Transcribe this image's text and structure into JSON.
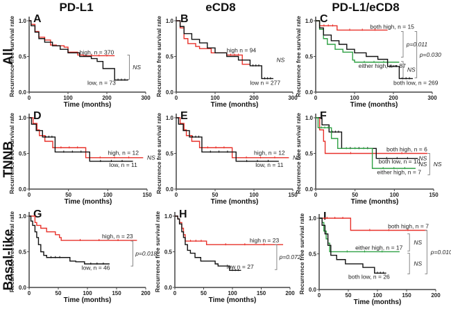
{
  "figure": {
    "column_titles": [
      "PD-L1",
      "eCD8",
      "PD-L1/eCD8"
    ],
    "row_labels": [
      "All",
      "TNNB",
      "Basal-like"
    ],
    "colors": {
      "high": "#e8312a",
      "low": "#111111",
      "either": "#2ea043",
      "bracket": "#888888"
    }
  },
  "chart_data": [
    {
      "id": "A",
      "type": "line",
      "row": "All",
      "column": "PD-L1",
      "xlabel": "Time (months)",
      "ylabel": "Recurrence free survival rate",
      "xlim": [
        0,
        300
      ],
      "ylim": [
        0,
        1.0
      ],
      "xticks": [
        0,
        100,
        200,
        300
      ],
      "yticks": [
        "0.0",
        "0.5",
        "1.0"
      ],
      "series": [
        {
          "name": "high",
          "label": "high, n = 370",
          "color": "#e8312a",
          "x": [
            0,
            5,
            15,
            25,
            40,
            55,
            70,
            90,
            100,
            125,
            140,
            220
          ],
          "y": [
            1.0,
            0.95,
            0.85,
            0.77,
            0.73,
            0.66,
            0.65,
            0.63,
            0.56,
            0.52,
            0.51,
            0.51
          ]
        },
        {
          "name": "low",
          "label": "low, n = 73",
          "color": "#111111",
          "x": [
            0,
            5,
            15,
            25,
            40,
            60,
            80,
            100,
            130,
            160,
            175,
            190,
            200,
            220,
            220,
            255
          ],
          "y": [
            1.0,
            0.93,
            0.84,
            0.75,
            0.7,
            0.65,
            0.6,
            0.55,
            0.5,
            0.47,
            0.43,
            0.33,
            0.33,
            0.33,
            0.17,
            0.17
          ]
        }
      ],
      "annotations": [
        {
          "text": "NS",
          "between": [
            "high",
            "low"
          ]
        }
      ]
    },
    {
      "id": "B",
      "type": "line",
      "row": "All",
      "column": "eCD8",
      "xlabel": "Time (months)",
      "ylabel": "Recurrence free survival rate",
      "xlim": [
        0,
        300
      ],
      "ylim": [
        0,
        1.0
      ],
      "xticks": [
        0,
        100,
        200,
        300
      ],
      "yticks": [
        "0.0",
        "0.5",
        "1.0"
      ],
      "series": [
        {
          "name": "high",
          "label": "high n = 94",
          "color": "#e8312a",
          "x": [
            0,
            10,
            20,
            30,
            50,
            60,
            90,
            130,
            170,
            170,
            190
          ],
          "y": [
            1.0,
            0.9,
            0.75,
            0.68,
            0.64,
            0.61,
            0.55,
            0.52,
            0.52,
            0.39,
            0.39
          ]
        },
        {
          "name": "low",
          "label": "low n = 277",
          "color": "#111111",
          "x": [
            0,
            10,
            20,
            40,
            60,
            80,
            100,
            130,
            160,
            190,
            220,
            220,
            250
          ],
          "y": [
            1.0,
            0.92,
            0.82,
            0.74,
            0.69,
            0.62,
            0.55,
            0.5,
            0.45,
            0.37,
            0.37,
            0.19,
            0.19
          ]
        }
      ],
      "annotations": [
        {
          "text": "NS",
          "between": [
            "high",
            "low"
          ]
        }
      ]
    },
    {
      "id": "C",
      "type": "line",
      "row": "All",
      "column": "PD-L1/eCD8",
      "xlabel": "Time (months)",
      "ylabel": "Recurrence free survival rate",
      "xlim": [
        0,
        300
      ],
      "ylim": [
        0,
        1.0
      ],
      "xticks": [
        0,
        100,
        200,
        300
      ],
      "yticks": [
        "0.0",
        "0.5",
        "1.0"
      ],
      "series": [
        {
          "name": "both high",
          "label": "both high, n = 15",
          "color": "#e8312a",
          "x": [
            0,
            10,
            10,
            55,
            55,
            185
          ],
          "y": [
            1.0,
            1.0,
            0.93,
            0.93,
            0.87,
            0.87
          ]
        },
        {
          "name": "either high",
          "label": "either high, n = 87",
          "color": "#2ea043",
          "x": [
            0,
            10,
            20,
            30,
            50,
            70,
            95,
            100,
            200,
            215
          ],
          "y": [
            1.0,
            0.88,
            0.75,
            0.67,
            0.6,
            0.56,
            0.45,
            0.42,
            0.42,
            0.42
          ]
        },
        {
          "name": "both low",
          "label": "both low, n = 269",
          "color": "#111111",
          "x": [
            0,
            10,
            20,
            40,
            60,
            80,
            100,
            130,
            160,
            185,
            185,
            215,
            215,
            250
          ],
          "y": [
            1.0,
            0.9,
            0.8,
            0.72,
            0.67,
            0.6,
            0.55,
            0.5,
            0.46,
            0.42,
            0.36,
            0.36,
            0.19,
            0.19
          ]
        }
      ],
      "annotations": [
        {
          "text": "p=0.011",
          "between": [
            "both high",
            "either high"
          ]
        },
        {
          "text": "NS",
          "between": [
            "either high",
            "both low"
          ]
        },
        {
          "text": "p=0.030",
          "between": [
            "both high",
            "both low"
          ]
        }
      ]
    },
    {
      "id": "D",
      "type": "line",
      "row": "TNNB",
      "column": "PD-L1",
      "xlabel": "Time (months)",
      "ylabel": "Recurrence free survival rate",
      "xlim": [
        0,
        150
      ],
      "ylim": [
        0,
        1.0
      ],
      "xticks": [
        0,
        50,
        100,
        150
      ],
      "yticks": [
        "0.0",
        "0.5",
        "1.0"
      ],
      "series": [
        {
          "name": "high",
          "label": "high, n = 12",
          "color": "#e8312a",
          "x": [
            0,
            5,
            5,
            10,
            10,
            13,
            13,
            20,
            20,
            30,
            30,
            72,
            72,
            145
          ],
          "y": [
            1.0,
            1.0,
            0.92,
            0.92,
            0.83,
            0.83,
            0.75,
            0.75,
            0.67,
            0.67,
            0.58,
            0.58,
            0.44,
            0.44
          ]
        },
        {
          "name": "low",
          "label": "low, n = 11",
          "color": "#111111",
          "x": [
            0,
            3,
            3,
            9,
            9,
            17,
            17,
            33,
            33,
            77,
            77,
            132
          ],
          "y": [
            1.0,
            1.0,
            0.91,
            0.91,
            0.82,
            0.82,
            0.73,
            0.73,
            0.52,
            0.52,
            0.39,
            0.39
          ]
        }
      ],
      "annotations": [
        {
          "text": "NS",
          "between": [
            "high",
            "low"
          ]
        }
      ]
    },
    {
      "id": "E",
      "type": "line",
      "row": "TNNB",
      "column": "eCD8",
      "xlabel": "Time (months)",
      "ylabel": "Recurrence free survival rate",
      "xlim": [
        0,
        150
      ],
      "ylim": [
        0,
        1.0
      ],
      "xticks": [
        0,
        50,
        100,
        150
      ],
      "yticks": [
        "0.0",
        "0.5",
        "1.0"
      ],
      "series": [
        {
          "name": "high",
          "label": "high, n = 12",
          "color": "#e8312a",
          "x": [
            0,
            5,
            5,
            10,
            10,
            13,
            13,
            20,
            20,
            30,
            30,
            72,
            72,
            145
          ],
          "y": [
            1.0,
            1.0,
            0.92,
            0.92,
            0.83,
            0.83,
            0.75,
            0.75,
            0.67,
            0.67,
            0.58,
            0.58,
            0.44,
            0.44
          ]
        },
        {
          "name": "low",
          "label": "low, n = 11",
          "color": "#111111",
          "x": [
            0,
            3,
            3,
            9,
            9,
            17,
            17,
            33,
            33,
            77,
            77,
            132
          ],
          "y": [
            1.0,
            1.0,
            0.91,
            0.91,
            0.82,
            0.82,
            0.73,
            0.73,
            0.52,
            0.52,
            0.39,
            0.39
          ]
        }
      ],
      "annotations": [
        {
          "text": "NS",
          "between": [
            "high",
            "low"
          ]
        }
      ]
    },
    {
      "id": "F",
      "type": "line",
      "row": "TNNB",
      "column": "PD-L1/eCD8",
      "xlabel": "Time (months)",
      "ylabel": "Recurrence free survival rate",
      "xlim": [
        0,
        150
      ],
      "ylim": [
        0,
        1.0
      ],
      "xticks": [
        0,
        50,
        100,
        150
      ],
      "yticks": [
        "0.0",
        "0.5",
        "1.0"
      ],
      "series": [
        {
          "name": "both high",
          "label": "both high, n = 6",
          "color": "#e8312a",
          "x": [
            0,
            5,
            5,
            10,
            10,
            12,
            12,
            142
          ],
          "y": [
            1.0,
            1.0,
            0.83,
            0.83,
            0.67,
            0.67,
            0.5,
            0.5
          ]
        },
        {
          "name": "both low",
          "label": "both low, n = 10",
          "color": "#111111",
          "x": [
            0,
            8,
            8,
            17,
            17,
            33,
            33,
            77,
            77,
            130
          ],
          "y": [
            1.0,
            1.0,
            0.9,
            0.9,
            0.8,
            0.8,
            0.57,
            0.57,
            0.43,
            0.43
          ]
        },
        {
          "name": "either high",
          "label": "either high, n = 7",
          "color": "#2ea043",
          "x": [
            0,
            3,
            3,
            20,
            20,
            28,
            28,
            72,
            72,
            127
          ],
          "y": [
            1.0,
            1.0,
            0.86,
            0.86,
            0.71,
            0.71,
            0.57,
            0.57,
            0.29,
            0.29
          ]
        }
      ],
      "annotations": [
        {
          "text": "NS",
          "between": [
            "both high",
            "both low"
          ]
        },
        {
          "text": "NS",
          "between": [
            "both low",
            "either high"
          ]
        },
        {
          "text": "NS",
          "between": [
            "both high",
            "either high"
          ]
        }
      ]
    },
    {
      "id": "G",
      "type": "line",
      "row": "Basal-like",
      "column": "PD-L1",
      "xlabel": "Time (months)",
      "ylabel": "Recurrence free survival rate",
      "xlim": [
        0,
        200
      ],
      "ylim": [
        0,
        1.0
      ],
      "xticks": [
        0,
        50,
        100,
        150,
        200
      ],
      "yticks": [
        "0.0",
        "0.5",
        "1.0"
      ],
      "series": [
        {
          "name": "high",
          "label": "high, n = 23",
          "color": "#e8312a",
          "x": [
            0,
            10,
            10,
            13,
            13,
            20,
            20,
            30,
            30,
            45,
            45,
            52,
            52,
            55,
            55,
            185
          ],
          "y": [
            1.0,
            1.0,
            0.91,
            0.91,
            0.87,
            0.87,
            0.83,
            0.83,
            0.78,
            0.78,
            0.74,
            0.74,
            0.7,
            0.7,
            0.66,
            0.66
          ]
        },
        {
          "name": "low",
          "label": "low, n = 46",
          "color": "#111111",
          "x": [
            0,
            3,
            6,
            10,
            13,
            16,
            20,
            25,
            30,
            60,
            70,
            80,
            95,
            138
          ],
          "y": [
            1.0,
            0.93,
            0.87,
            0.78,
            0.7,
            0.6,
            0.5,
            0.45,
            0.42,
            0.42,
            0.37,
            0.36,
            0.33,
            0.33
          ]
        }
      ],
      "annotations": [
        {
          "text": "p=0.018",
          "between": [
            "high",
            "low"
          ]
        }
      ]
    },
    {
      "id": "H",
      "type": "line",
      "row": "Basal-like",
      "column": "eCD8",
      "xlabel": "Time (months)",
      "ylabel": "Recurrence free survival rate",
      "xlim": [
        0,
        200
      ],
      "ylim": [
        0,
        1.0
      ],
      "xticks": [
        0,
        50,
        100,
        150,
        200
      ],
      "yticks": [
        "0.0",
        "0.5",
        "1.0"
      ],
      "series": [
        {
          "name": "high",
          "label": "high n = 23",
          "color": "#e8312a",
          "x": [
            0,
            5,
            8,
            12,
            15,
            18,
            18,
            55,
            55,
            188
          ],
          "y": [
            1.0,
            0.96,
            0.91,
            0.83,
            0.74,
            0.7,
            0.65,
            0.65,
            0.6,
            0.6
          ]
        },
        {
          "name": "low",
          "label": "low n = 27",
          "color": "#111111",
          "x": [
            0,
            5,
            8,
            12,
            15,
            18,
            22,
            27,
            35,
            45,
            70,
            75,
            95,
            115
          ],
          "y": [
            1.0,
            0.96,
            0.89,
            0.78,
            0.7,
            0.6,
            0.52,
            0.48,
            0.42,
            0.37,
            0.33,
            0.3,
            0.24,
            0.24
          ]
        }
      ],
      "annotations": [
        {
          "text": "p=0.072",
          "between": [
            "high",
            "low"
          ]
        }
      ]
    },
    {
      "id": "I",
      "type": "line",
      "row": "Basal-like",
      "column": "PD-L1/eCD8",
      "xlabel": "Time (months)",
      "ylabel": "Recurrence free survival rate",
      "xlim": [
        0,
        200
      ],
      "ylim": [
        0,
        1.0
      ],
      "xticks": [
        0,
        50,
        100,
        150,
        200
      ],
      "yticks": [
        "0.0",
        "0.5",
        "1.0"
      ],
      "series": [
        {
          "name": "both high",
          "label": "both high, n = 7",
          "color": "#e8312a",
          "x": [
            0,
            54,
            54,
            185
          ],
          "y": [
            1.0,
            1.0,
            0.83,
            0.83
          ]
        },
        {
          "name": "either high",
          "label": "either high, n = 17",
          "color": "#2ea043",
          "x": [
            0,
            5,
            8,
            12,
            15,
            18,
            18,
            138
          ],
          "y": [
            1.0,
            0.94,
            0.82,
            0.71,
            0.65,
            0.59,
            0.53,
            0.53
          ]
        },
        {
          "name": "both low",
          "label": "both low, n = 26",
          "color": "#111111",
          "x": [
            0,
            5,
            10,
            15,
            20,
            30,
            45,
            75,
            95,
            95,
            115
          ],
          "y": [
            1.0,
            0.9,
            0.78,
            0.62,
            0.48,
            0.42,
            0.36,
            0.31,
            0.3,
            0.23,
            0.23
          ]
        }
      ],
      "annotations": [
        {
          "text": "NS",
          "between": [
            "both high",
            "either high"
          ]
        },
        {
          "text": "NS",
          "between": [
            "either high",
            "both low"
          ]
        },
        {
          "text": "p=0.010",
          "between": [
            "both high",
            "both low"
          ]
        }
      ]
    }
  ]
}
